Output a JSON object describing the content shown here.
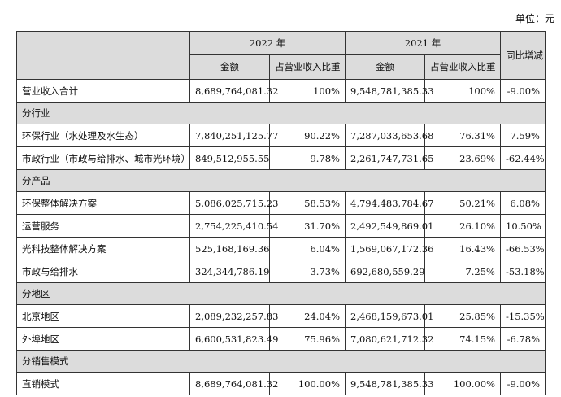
{
  "unit_label": "单位：元",
  "header": {
    "year_2022": "2022 年",
    "year_2021": "2021 年",
    "yoy": "同比增减",
    "amount_2022": "金额",
    "share_2022": "占营业收入比重",
    "amount_2021": "金额",
    "share_2021": "占营业收入比重"
  },
  "rows": [
    {
      "type": "data",
      "label": "营业收入合计",
      "a2022": "8,689,764,081.32",
      "s2022": "100%",
      "a2021": "9,548,781,385.33",
      "s2021": "100%",
      "yoy": "-9.00%"
    },
    {
      "type": "section",
      "label": "分行业"
    },
    {
      "type": "data",
      "label": "环保行业（水处理及水生态）",
      "a2022": "7,840,251,125.77",
      "s2022": "90.22%",
      "a2021": "7,287,033,653.68",
      "s2021": "76.31%",
      "yoy": "7.59%"
    },
    {
      "type": "data",
      "label": "市政行业（市政与给排水、城市光环境）",
      "a2022": "849,512,955.55",
      "s2022": "9.78%",
      "a2021": "2,261,747,731.65",
      "s2021": "23.69%",
      "yoy": "-62.44%"
    },
    {
      "type": "section",
      "label": "分产品"
    },
    {
      "type": "data",
      "label": "环保整体解决方案",
      "a2022": "5,086,025,715.23",
      "s2022": "58.53%",
      "a2021": "4,794,483,784.67",
      "s2021": "50.21%",
      "yoy": "6.08%"
    },
    {
      "type": "data",
      "label": "运营服务",
      "a2022": "2,754,225,410.54",
      "s2022": "31.70%",
      "a2021": "2,492,549,869.01",
      "s2021": "26.10%",
      "yoy": "10.50%"
    },
    {
      "type": "data",
      "label": "光科技整体解决方案",
      "a2022": "525,168,169.36",
      "s2022": "6.04%",
      "a2021": "1,569,067,172.36",
      "s2021": "16.43%",
      "yoy": "-66.53%"
    },
    {
      "type": "data",
      "label": "市政与给排水",
      "a2022": "324,344,786.19",
      "s2022": "3.73%",
      "a2021": "692,680,559.29",
      "s2021": "7.25%",
      "yoy": "-53.18%"
    },
    {
      "type": "section",
      "label": "分地区"
    },
    {
      "type": "data",
      "label": "北京地区",
      "a2022": "2,089,232,257.83",
      "s2022": "24.04%",
      "a2021": "2,468,159,673.01",
      "s2021": "25.85%",
      "yoy": "-15.35%"
    },
    {
      "type": "data",
      "label": "外埠地区",
      "a2022": "6,600,531,823.49",
      "s2022": "75.96%",
      "a2021": "7,080,621,712.32",
      "s2021": "74.15%",
      "yoy": "-6.78%"
    },
    {
      "type": "section",
      "label": "分销售模式"
    },
    {
      "type": "data",
      "label": "直销模式",
      "a2022": "8,689,764,081.32",
      "s2022": "100.00%",
      "a2021": "9,548,781,385.33",
      "s2021": "100.00%",
      "yoy": "-9.00%"
    }
  ]
}
